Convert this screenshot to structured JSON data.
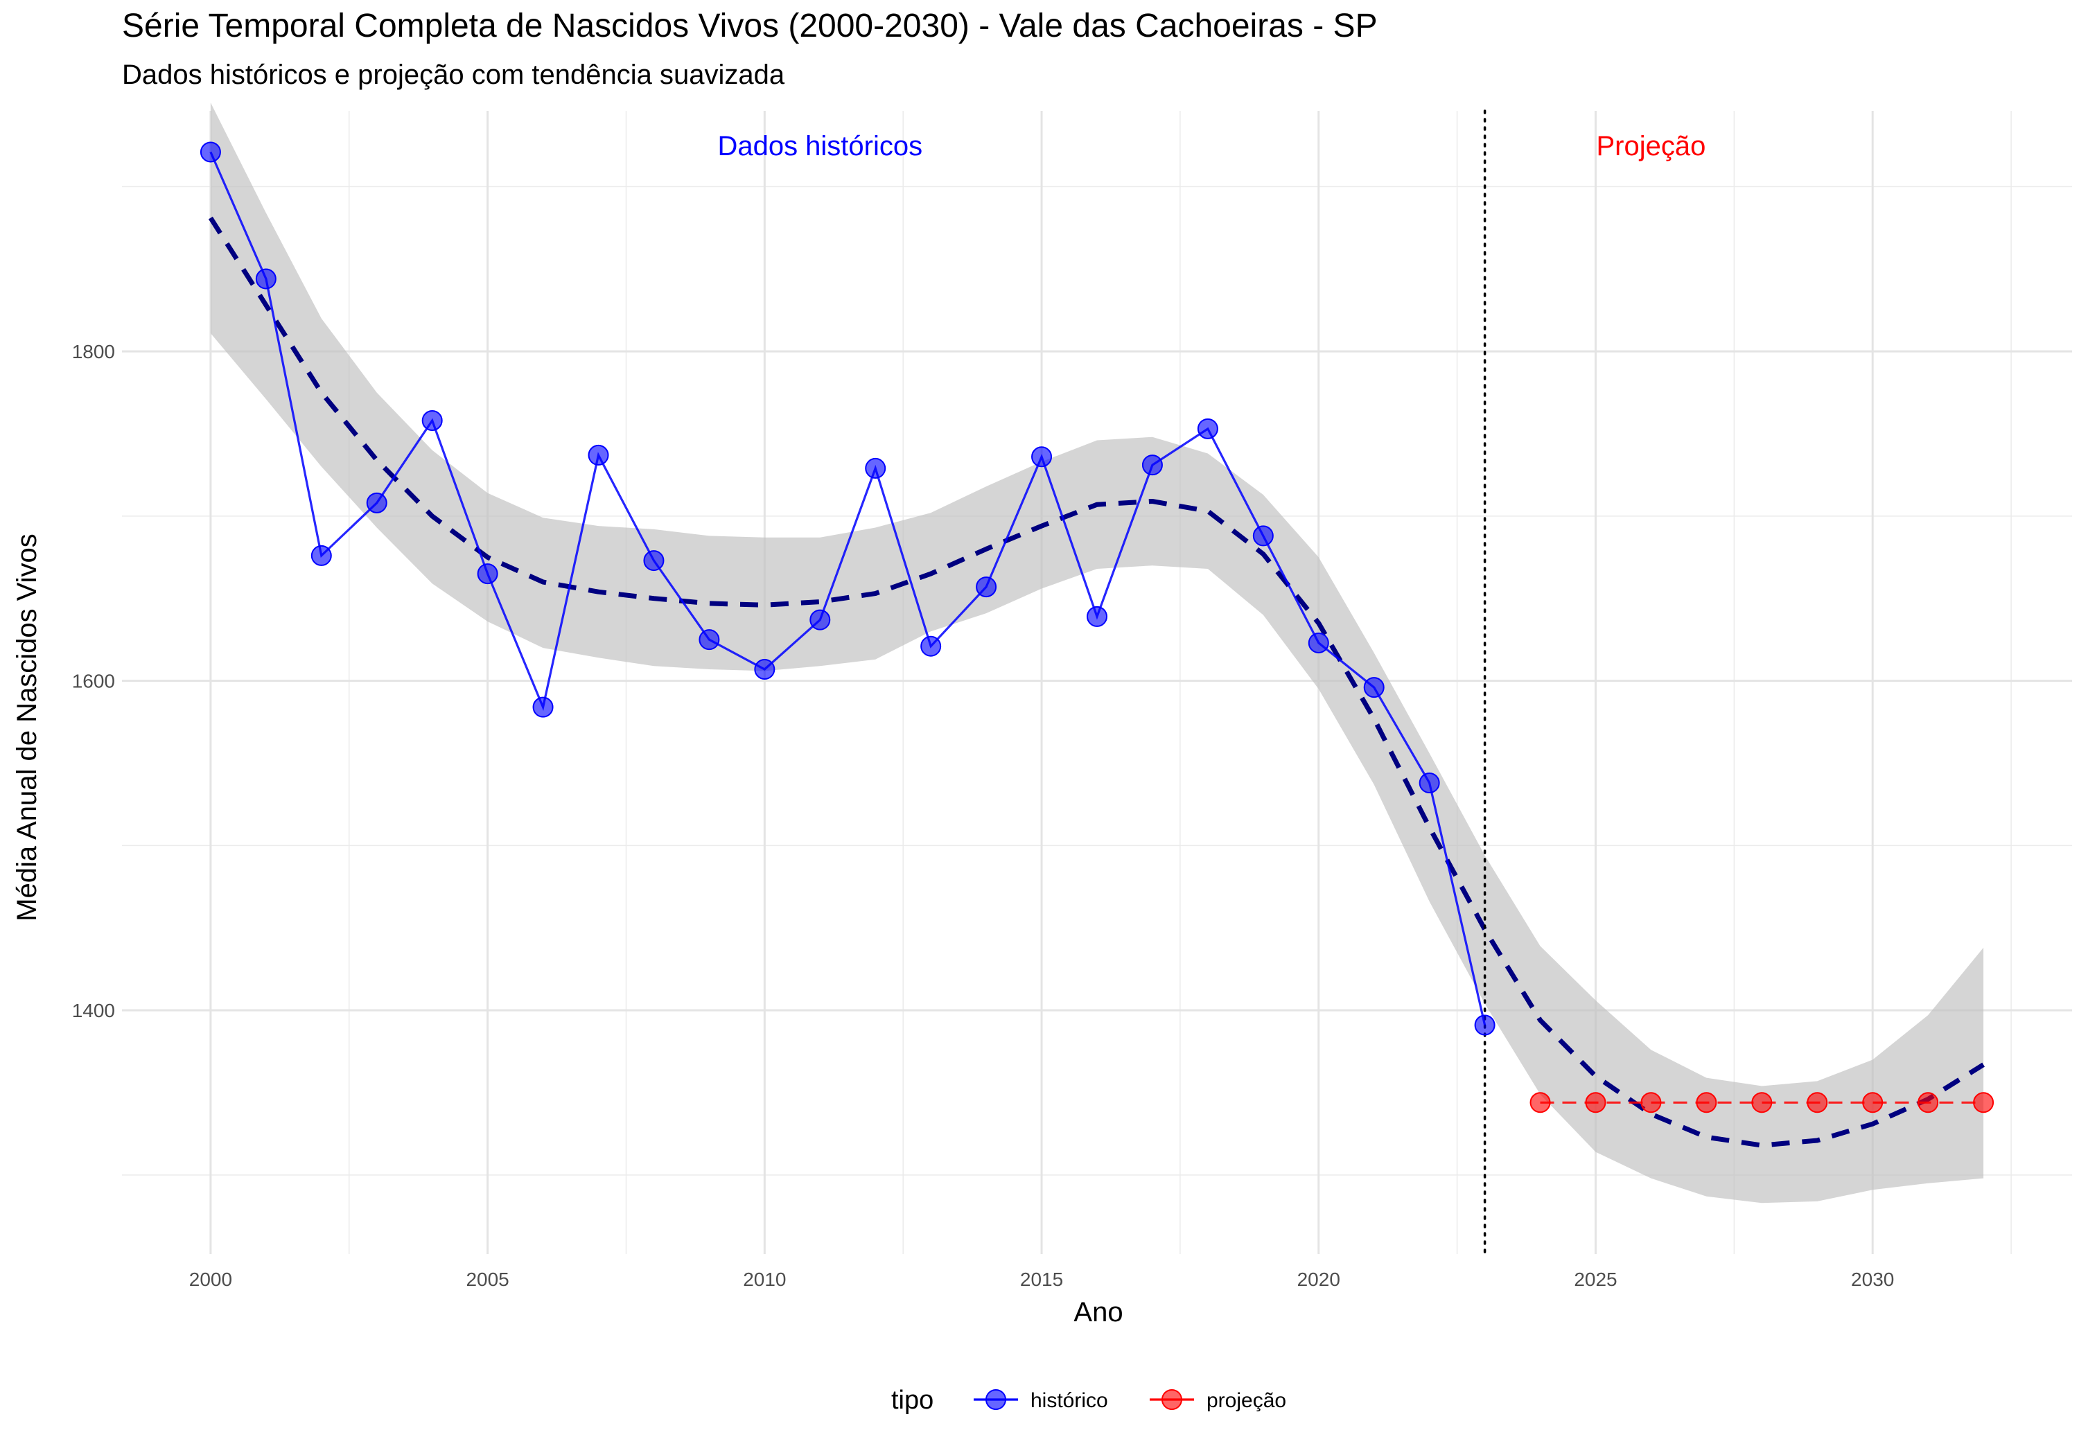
{
  "chart_data": {
    "type": "line",
    "title": "Série Temporal Completa de Nascidos Vivos (2000-2030) -  Vale das Cachoeiras - SP",
    "subtitle": "Dados históricos e projeção com tendência suavizada",
    "xlabel": "Ano",
    "ylabel": "Média Anual de Nascidos Vivos",
    "xlim": [
      1998.4,
      2033.6
    ],
    "ylim": [
      1252,
      1946
    ],
    "x_ticks": [
      2000,
      2005,
      2010,
      2015,
      2020,
      2025,
      2030
    ],
    "y_ticks": [
      1400,
      1600,
      1800
    ],
    "grid": true,
    "legend": {
      "title": "tipo",
      "position": "bottom"
    },
    "series": [
      {
        "name": "histórico",
        "color": "#0000ff",
        "x": [
          2000,
          2001,
          2002,
          2003,
          2004,
          2005,
          2006,
          2007,
          2008,
          2009,
          2010,
          2011,
          2012,
          2013,
          2014,
          2015,
          2016,
          2017,
          2018,
          2019,
          2020,
          2021,
          2022,
          2023
        ],
        "y": [
          1921,
          1844,
          1676,
          1708,
          1758,
          1665,
          1584,
          1737,
          1673,
          1625,
          1607,
          1637,
          1729,
          1621,
          1657,
          1736,
          1639,
          1731,
          1753,
          1688,
          1623,
          1596,
          1538,
          1391
        ]
      },
      {
        "name": "projeção",
        "color": "#ff0000",
        "x": [
          2024,
          2025,
          2026,
          2027,
          2028,
          2029,
          2030,
          2031,
          2032
        ],
        "y": [
          1344,
          1344,
          1344,
          1344,
          1344,
          1344,
          1344,
          1344,
          1344
        ]
      }
    ],
    "smooth": {
      "color": "#000080",
      "band_color": "#bebebe",
      "x": [
        2000,
        2001,
        2002,
        2003,
        2004,
        2005,
        2006,
        2007,
        2008,
        2009,
        2010,
        2011,
        2012,
        2013,
        2014,
        2015,
        2016,
        2017,
        2018,
        2019,
        2020,
        2021,
        2022,
        2023,
        2024,
        2025,
        2026,
        2027,
        2028,
        2029,
        2030,
        2031,
        2032
      ],
      "y": [
        1881,
        1828,
        1775,
        1734,
        1700,
        1675,
        1660,
        1654,
        1650,
        1647,
        1646,
        1648,
        1653,
        1665,
        1680,
        1694,
        1707,
        1709,
        1703,
        1677,
        1635,
        1577,
        1511,
        1449,
        1394,
        1360,
        1337,
        1323,
        1318,
        1321,
        1331,
        1346,
        1367
      ],
      "lower": [
        1811,
        1771,
        1730,
        1693,
        1659,
        1636,
        1620,
        1614,
        1609,
        1607,
        1606,
        1609,
        1613,
        1630,
        1641,
        1656,
        1668,
        1670,
        1668,
        1640,
        1595,
        1537,
        1466,
        1404,
        1349,
        1314,
        1298,
        1287,
        1283,
        1284,
        1291,
        1295,
        1298
      ],
      "upper": [
        1951,
        1884,
        1820,
        1775,
        1740,
        1714,
        1699,
        1694,
        1692,
        1688,
        1687,
        1687,
        1693,
        1702,
        1718,
        1733,
        1746,
        1748,
        1738,
        1713,
        1675,
        1617,
        1556,
        1494,
        1439,
        1406,
        1376,
        1359,
        1354,
        1357,
        1370,
        1397,
        1438
      ]
    },
    "vline": {
      "x": 2023,
      "style": "dotted"
    },
    "annotations": [
      {
        "text": "Dados históricos",
        "x": 2011,
        "y": 1925,
        "color": "#0000ff"
      },
      {
        "text": "Projeção",
        "x": 2026,
        "y": 1925,
        "color": "#ff0000"
      }
    ]
  }
}
